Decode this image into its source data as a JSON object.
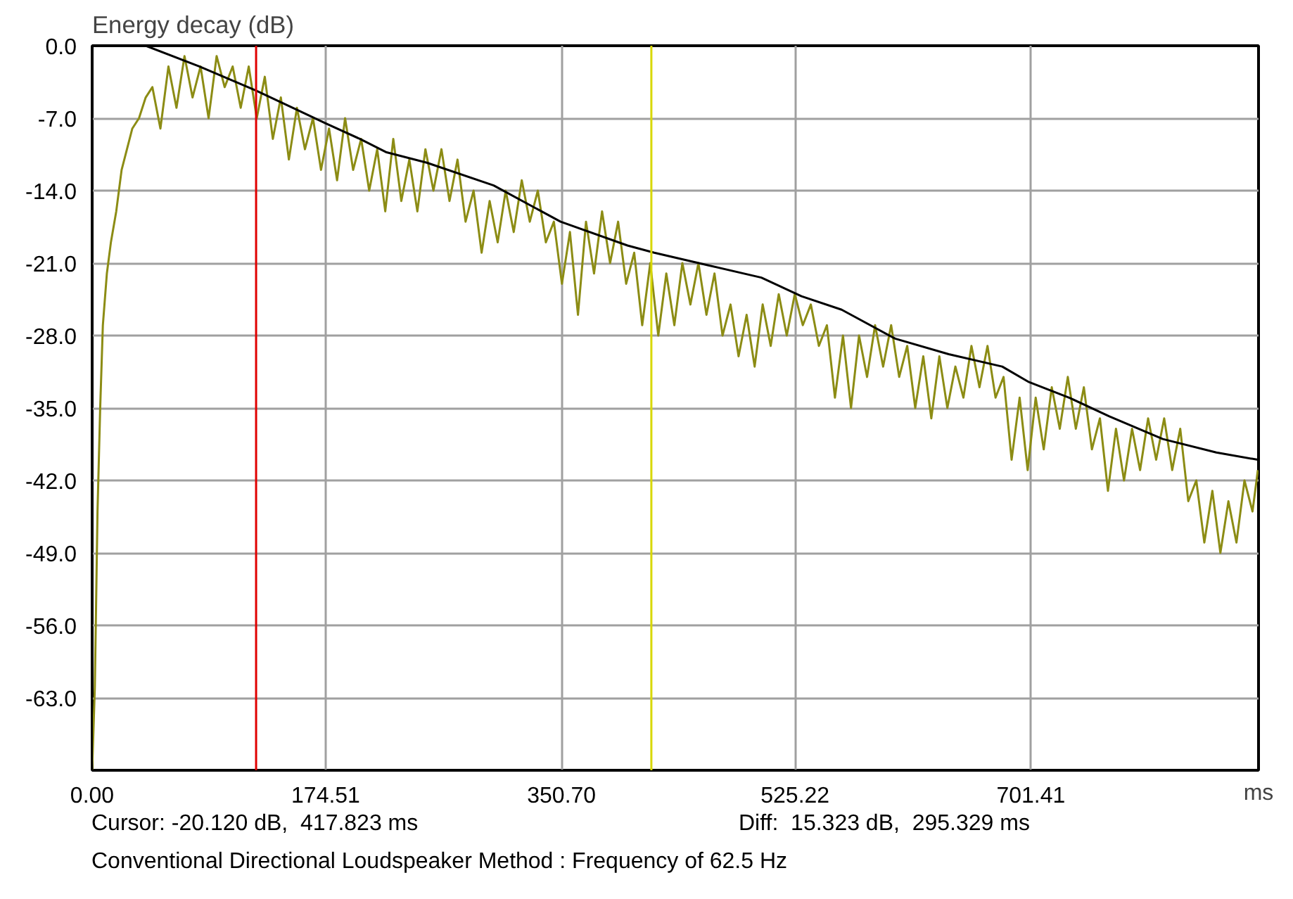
{
  "chart_data": {
    "type": "line",
    "ylabel": "Energy decay (dB)",
    "xlabel": "ms",
    "xlim": [
      0,
      871.5
    ],
    "ylim": [
      -70,
      0
    ],
    "xticks": [
      {
        "value": 0,
        "label": "0.00"
      },
      {
        "value": 174.51,
        "label": "174.51"
      },
      {
        "value": 350.7,
        "label": "350.70"
      },
      {
        "value": 525.22,
        "label": "525.22"
      },
      {
        "value": 701.41,
        "label": "701.41"
      }
    ],
    "yticks": [
      {
        "value": 0,
        "label": "0.0"
      },
      {
        "value": -7,
        "label": "-7.0"
      },
      {
        "value": -14,
        "label": "-14.0"
      },
      {
        "value": -21,
        "label": "-21.0"
      },
      {
        "value": -28,
        "label": "-28.0"
      },
      {
        "value": -35,
        "label": "-35.0"
      },
      {
        "value": -42,
        "label": "-42.0"
      },
      {
        "value": -49,
        "label": "-49.0"
      },
      {
        "value": -56,
        "label": "-56.0"
      },
      {
        "value": -63,
        "label": "-63.0"
      }
    ],
    "grid": true,
    "series": [
      {
        "color": "#8c8c14",
        "x": [
          0,
          2,
          4,
          6,
          8,
          11,
          14,
          18,
          22,
          26,
          30,
          35,
          40,
          45,
          51,
          57,
          63,
          69,
          75,
          81,
          87,
          93,
          99,
          105,
          111,
          117,
          123,
          129,
          135,
          141,
          147,
          153,
          159,
          165,
          171,
          177,
          183,
          189,
          195,
          201,
          207,
          213,
          219,
          225,
          231,
          237,
          243,
          249,
          255,
          261,
          267,
          273,
          279,
          285,
          291,
          297,
          303,
          309,
          315,
          321,
          327,
          333,
          339,
          345,
          351,
          357,
          363,
          369,
          375,
          381,
          387,
          393,
          399,
          405,
          411,
          417,
          423,
          429,
          435,
          441,
          447,
          453,
          459,
          465,
          471,
          477,
          483,
          489,
          495,
          501,
          507,
          513,
          519,
          525,
          531,
          537,
          543,
          549,
          555,
          561,
          567,
          573,
          579,
          585,
          591,
          597,
          603,
          609,
          615,
          621,
          627,
          633,
          639,
          645,
          651,
          657,
          663,
          669,
          675,
          681,
          687,
          693,
          699,
          705,
          711,
          717,
          723,
          729,
          735,
          741,
          747,
          753,
          759,
          765,
          771,
          777,
          783,
          789,
          795,
          801,
          807,
          813,
          819,
          825,
          831,
          837,
          843,
          849,
          855,
          861,
          867,
          871
        ],
        "values": [
          -70,
          -62,
          -45,
          -35,
          -27,
          -22,
          -19,
          -16,
          -12,
          -10,
          -8,
          -7,
          -5,
          -4,
          -8,
          -2,
          -6,
          -1,
          -5,
          -2,
          -7,
          -1,
          -4,
          -2,
          -6,
          -2,
          -7,
          -3,
          -9,
          -5,
          -11,
          -6,
          -10,
          -7,
          -12,
          -8,
          -13,
          -7,
          -12,
          -9,
          -14,
          -10,
          -16,
          -9,
          -15,
          -11,
          -16,
          -10,
          -14,
          -10,
          -15,
          -11,
          -17,
          -14,
          -20,
          -15,
          -19,
          -14,
          -18,
          -13,
          -17,
          -14,
          -19,
          -17,
          -23,
          -18,
          -26,
          -17,
          -22,
          -16,
          -21,
          -17,
          -23,
          -20,
          -27,
          -21,
          -28,
          -22,
          -27,
          -21,
          -25,
          -21,
          -26,
          -22,
          -28,
          -25,
          -30,
          -26,
          -31,
          -25,
          -29,
          -24,
          -28,
          -24,
          -27,
          -25,
          -29,
          -27,
          -34,
          -28,
          -35,
          -28,
          -32,
          -27,
          -31,
          -27,
          -32,
          -29,
          -35,
          -30,
          -36,
          -30,
          -35,
          -31,
          -34,
          -29,
          -33,
          -29,
          -34,
          -32,
          -40,
          -34,
          -41,
          -34,
          -39,
          -33,
          -37,
          -32,
          -37,
          -33,
          -39,
          -36,
          -43,
          -37,
          -42,
          -37,
          -41,
          -36,
          -40,
          -36,
          -41,
          -37,
          -44,
          -42,
          -48,
          -43,
          -49,
          -44,
          -48,
          -42,
          -45,
          -41
        ]
      },
      {
        "color": "#000000",
        "x": [
          40,
          80,
          122,
          150,
          174.5,
          200,
          220,
          250,
          300,
          350,
          400,
          420,
          460,
          500,
          530,
          560,
          600,
          640,
          680,
          700,
          730,
          760,
          800,
          840,
          871
        ],
        "values": [
          0,
          -2,
          -4.3,
          -6,
          -7.5,
          -9,
          -10.3,
          -11.3,
          -13.5,
          -17,
          -19.3,
          -20,
          -21.2,
          -22.4,
          -24.2,
          -25.5,
          -28.3,
          -29.8,
          -31,
          -32.5,
          -34,
          -35.8,
          -38,
          -39.3,
          -40
        ]
      }
    ],
    "ref_lines": [
      {
        "axis": "x",
        "value": 122.494,
        "color": "#e00000"
      },
      {
        "axis": "x",
        "value": 417.823,
        "color": "#d8d800"
      }
    ],
    "annotations": [
      "Cursor: -20.120 dB,  417.823 ms",
      "Diff:  15.323 dB,  295.329 ms",
      "Conventional Directional Loudspeaker Method : Frequency of 62.5 Hz"
    ]
  }
}
